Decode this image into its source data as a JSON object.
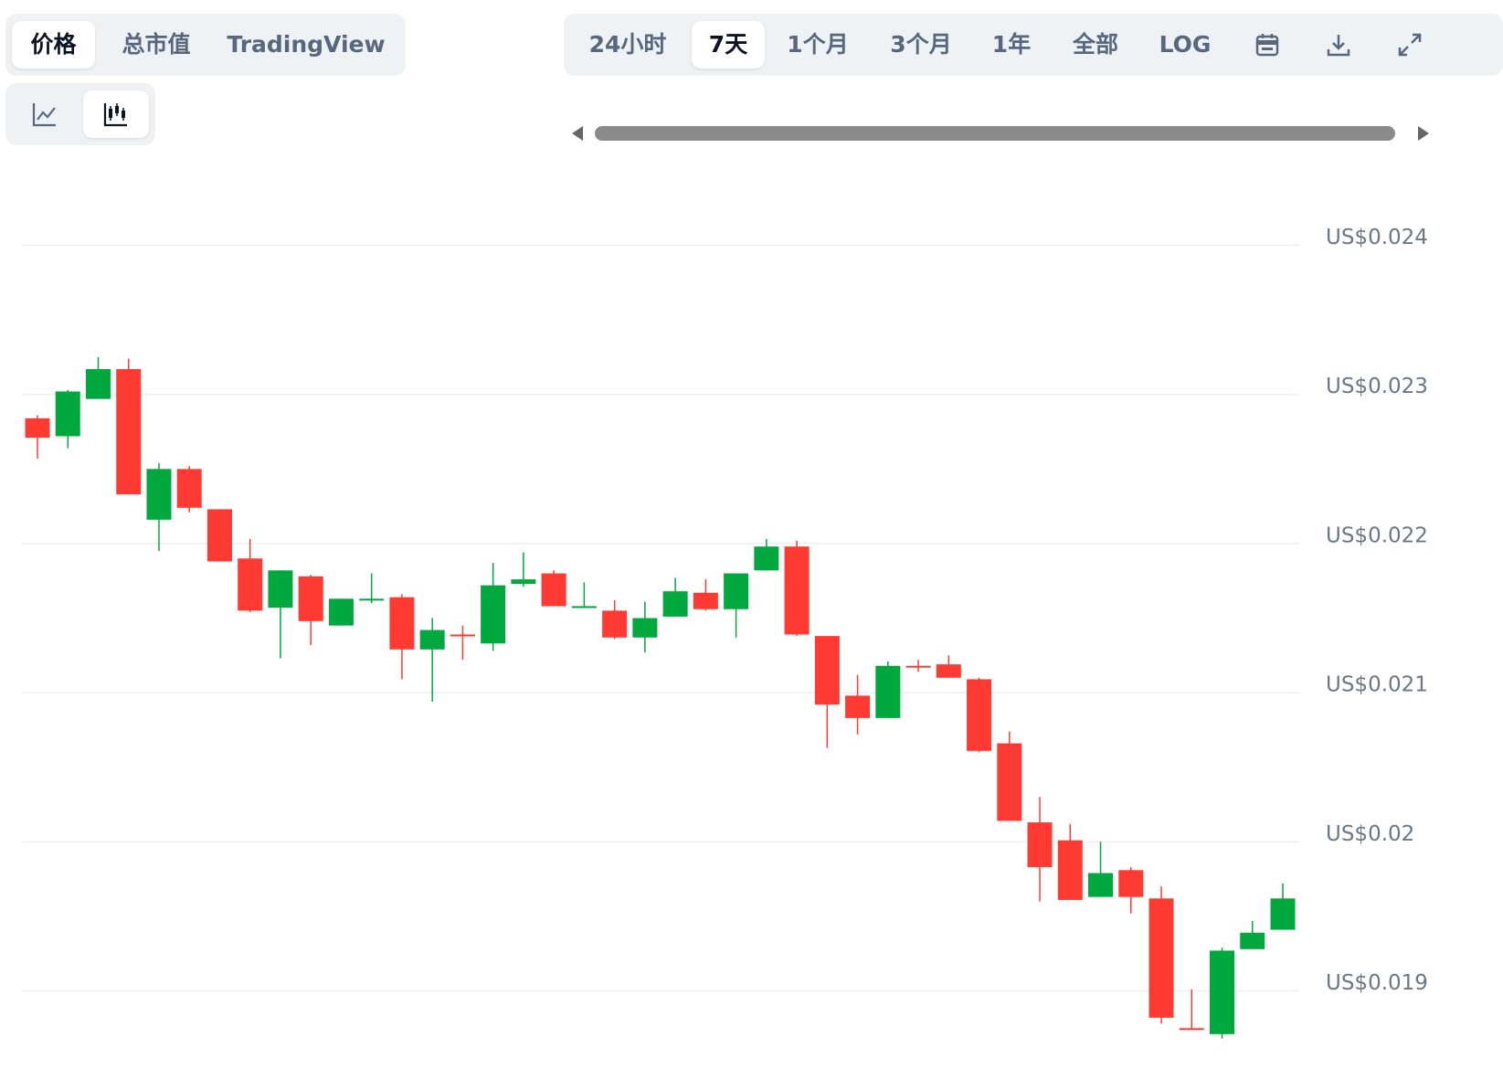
{
  "ui": {
    "tabs": [
      "价格",
      "总市值",
      "TradingView"
    ],
    "active_tab": 0,
    "ranges": [
      "24小时",
      "7天",
      "1个月",
      "3个月",
      "1年",
      "全部",
      "LOG"
    ],
    "active_range": 1,
    "active_chart_style": 1
  },
  "chart_data": {
    "type": "candlestick",
    "up_color": "#00a83e",
    "down_color": "#ff3a33",
    "grid": true,
    "ylim": [
      0.01866,
      0.02442
    ],
    "yticks": [
      {
        "value": 0.024,
        "label": "US$0.024"
      },
      {
        "value": 0.023,
        "label": "US$0.023"
      },
      {
        "value": 0.022,
        "label": "US$0.022"
      },
      {
        "value": 0.021,
        "label": "US$0.021"
      },
      {
        "value": 0.02,
        "label": "US$0.02"
      },
      {
        "value": 0.019,
        "label": "US$0.019"
      }
    ],
    "open": [
      0.02284,
      0.02272,
      0.02297,
      0.02317,
      0.02216,
      0.0225,
      0.02223,
      0.0219,
      0.02157,
      0.02178,
      0.02145,
      0.02162,
      0.02164,
      0.02129,
      0.02139,
      0.02133,
      0.02173,
      0.0218,
      0.02157,
      0.02155,
      0.02137,
      0.02151,
      0.02167,
      0.02156,
      0.02182,
      0.02198,
      0.02138,
      0.02098,
      0.02083,
      0.02118,
      0.02119,
      0.02109,
      0.02066,
      0.02013,
      0.02001,
      0.01963,
      0.01981,
      0.01962,
      0.01875,
      0.01871,
      0.01928,
      0.01941
    ],
    "high": [
      0.02286,
      0.02303,
      0.02325,
      0.02324,
      0.02254,
      0.02252,
      0.02223,
      0.02203,
      0.02182,
      0.02179,
      0.02163,
      0.0218,
      0.02166,
      0.0215,
      0.02145,
      0.02187,
      0.02194,
      0.02182,
      0.02174,
      0.02162,
      0.02161,
      0.02177,
      0.02176,
      0.0218,
      0.02203,
      0.02202,
      0.02138,
      0.02112,
      0.02121,
      0.02122,
      0.02125,
      0.0211,
      0.02074,
      0.0203,
      0.02012,
      0.02,
      0.01983,
      0.0197,
      0.01901,
      0.01929,
      0.01947,
      0.01972
    ],
    "low": [
      0.02257,
      0.02264,
      0.02297,
      0.02233,
      0.02195,
      0.02221,
      0.02188,
      0.02154,
      0.02123,
      0.02132,
      0.02145,
      0.0216,
      0.02109,
      0.02094,
      0.02122,
      0.02128,
      0.02171,
      0.02158,
      0.02157,
      0.02136,
      0.02127,
      0.02151,
      0.02155,
      0.02137,
      0.02182,
      0.02138,
      0.02063,
      0.02072,
      0.02083,
      0.02114,
      0.0211,
      0.0206,
      0.02014,
      0.0196,
      0.01961,
      0.01963,
      0.01952,
      0.01878,
      0.01874,
      0.01868,
      0.01928,
      0.01941
    ],
    "close": [
      0.02271,
      0.02302,
      0.02317,
      0.02233,
      0.0225,
      0.02224,
      0.02188,
      0.02155,
      0.02182,
      0.02148,
      0.02163,
      0.02163,
      0.02129,
      0.02142,
      0.02138,
      0.02172,
      0.02176,
      0.02158,
      0.02158,
      0.02137,
      0.0215,
      0.02168,
      0.02156,
      0.0218,
      0.02198,
      0.02139,
      0.02092,
      0.02083,
      0.02118,
      0.02117,
      0.0211,
      0.02061,
      0.02014,
      0.01983,
      0.01961,
      0.01979,
      0.01963,
      0.01882,
      0.01874,
      0.01927,
      0.01939,
      0.01962
    ]
  }
}
